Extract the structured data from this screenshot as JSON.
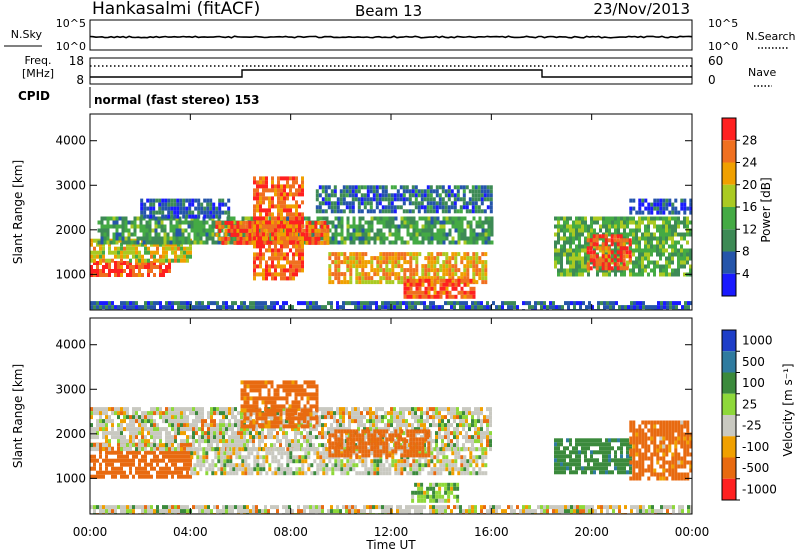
{
  "header": {
    "station": "Hankasalmi (fitACF)",
    "beam": "Beam 13",
    "date": "23/Nov/2013"
  },
  "noise_panel": {
    "left_label": "N.Sky",
    "right_label": "N.Search",
    "left_ticks": [
      "10^5",
      "10^0"
    ],
    "right_ticks": [
      "10^5",
      "10^0"
    ]
  },
  "freq_panel": {
    "left_label_1": "Freq.",
    "left_label_2": "[MHz]",
    "left_ticks": [
      "18",
      "8"
    ],
    "right_label": "Nave",
    "right_ticks": [
      "60",
      "0"
    ],
    "cpid_label": "CPID",
    "cpid_value": "normal (fast stereo) 153"
  },
  "colors": {
    "power_scale": [
      "#1a1aff",
      "#2555aa",
      "#3d8a55",
      "#44aa44",
      "#aaca22",
      "#f0a000",
      "#f07020",
      "#ff2020"
    ],
    "velocity_scale": [
      "#1e3ec8",
      "#2f7b9f",
      "#3b8a3c",
      "#8ed83a",
      "#c9c9c1",
      "#f0a000",
      "#e86a10",
      "#ff2020"
    ]
  },
  "chart_data": [
    {
      "type": "heatmap",
      "name": "power",
      "xlabel": "",
      "ylabel": "Slant Range [km]",
      "y_ticks": [
        "1000",
        "2000",
        "3000",
        "4000"
      ],
      "ylim": [
        200,
        4600
      ],
      "colorbar_label": "Power [dB]",
      "colorbar_ticks": [
        "4",
        "8",
        "12",
        "16",
        "20",
        "24",
        "28"
      ],
      "colorbar_range": [
        0,
        32
      ],
      "regions": [
        {
          "t0": 0.0,
          "t1": 3.2,
          "r0": 950,
          "r1": 1300,
          "value": 28
        },
        {
          "t0": 0.0,
          "t1": 4.0,
          "r0": 1300,
          "r1": 1800,
          "value": 20
        },
        {
          "t0": 0.3,
          "t1": 16.0,
          "r0": 1700,
          "r1": 2300,
          "value": 12
        },
        {
          "t0": 2.0,
          "t1": 5.5,
          "r0": 2300,
          "r1": 2700,
          "value": 6
        },
        {
          "t0": 5.0,
          "t1": 9.5,
          "r0": 1700,
          "r1": 2200,
          "value": 27
        },
        {
          "t0": 6.5,
          "t1": 8.5,
          "r0": 900,
          "r1": 3200,
          "value": 26
        },
        {
          "t0": 9.5,
          "t1": 15.8,
          "r0": 850,
          "r1": 1500,
          "value": 22
        },
        {
          "t0": 12.5,
          "t1": 15.3,
          "r0": 500,
          "r1": 900,
          "value": 28
        },
        {
          "t0": 9.0,
          "t1": 16.0,
          "r0": 2400,
          "r1": 3000,
          "value": 8
        },
        {
          "t0": 18.5,
          "t1": 24.0,
          "r0": 1000,
          "r1": 2300,
          "value": 14
        },
        {
          "t0": 19.8,
          "t1": 21.5,
          "r0": 1100,
          "r1": 1900,
          "value": 28
        },
        {
          "t0": 21.5,
          "t1": 24.0,
          "r0": 2400,
          "r1": 2700,
          "value": 5
        },
        {
          "t0": 0.0,
          "t1": 24.0,
          "r0": 200,
          "r1": 400,
          "value": 7
        }
      ]
    },
    {
      "type": "heatmap",
      "name": "velocity",
      "xlabel": "Time UT",
      "ylabel": "Slant Range [km]",
      "x_ticks": [
        "00:00",
        "04:00",
        "08:00",
        "12:00",
        "16:00",
        "20:00",
        "00:00"
      ],
      "xlim": [
        0,
        24
      ],
      "y_ticks": [
        "1000",
        "2000",
        "3000",
        "4000"
      ],
      "ylim": [
        200,
        4600
      ],
      "colorbar_label": "Velocity [m s⁻¹]",
      "colorbar_ticks": [
        "1000",
        "500",
        "100",
        "25",
        "-25",
        "-100",
        "-500",
        "-1000"
      ],
      "regions": [
        {
          "t0": 0.0,
          "t1": 4.0,
          "r0": 1000,
          "r1": 1800,
          "value": -300
        },
        {
          "t0": 0.0,
          "t1": 16.0,
          "r0": 1700,
          "r1": 2600,
          "value": 0
        },
        {
          "t0": 6.0,
          "t1": 9.0,
          "r0": 2200,
          "r1": 3200,
          "value": -200
        },
        {
          "t0": 4.0,
          "t1": 15.8,
          "r0": 1100,
          "r1": 1700,
          "value": 0
        },
        {
          "t0": 12.8,
          "t1": 14.6,
          "r0": 500,
          "r1": 900,
          "value": 80
        },
        {
          "t0": 9.5,
          "t1": 13.5,
          "r0": 1500,
          "r1": 2100,
          "value": -250
        },
        {
          "t0": 18.5,
          "t1": 21.5,
          "r0": 1100,
          "r1": 1900,
          "value": 400
        },
        {
          "t0": 21.5,
          "t1": 24.0,
          "r0": 1000,
          "r1": 2300,
          "value": -150
        },
        {
          "t0": 0.0,
          "t1": 24.0,
          "r0": 200,
          "r1": 400,
          "value": 0
        }
      ]
    }
  ]
}
